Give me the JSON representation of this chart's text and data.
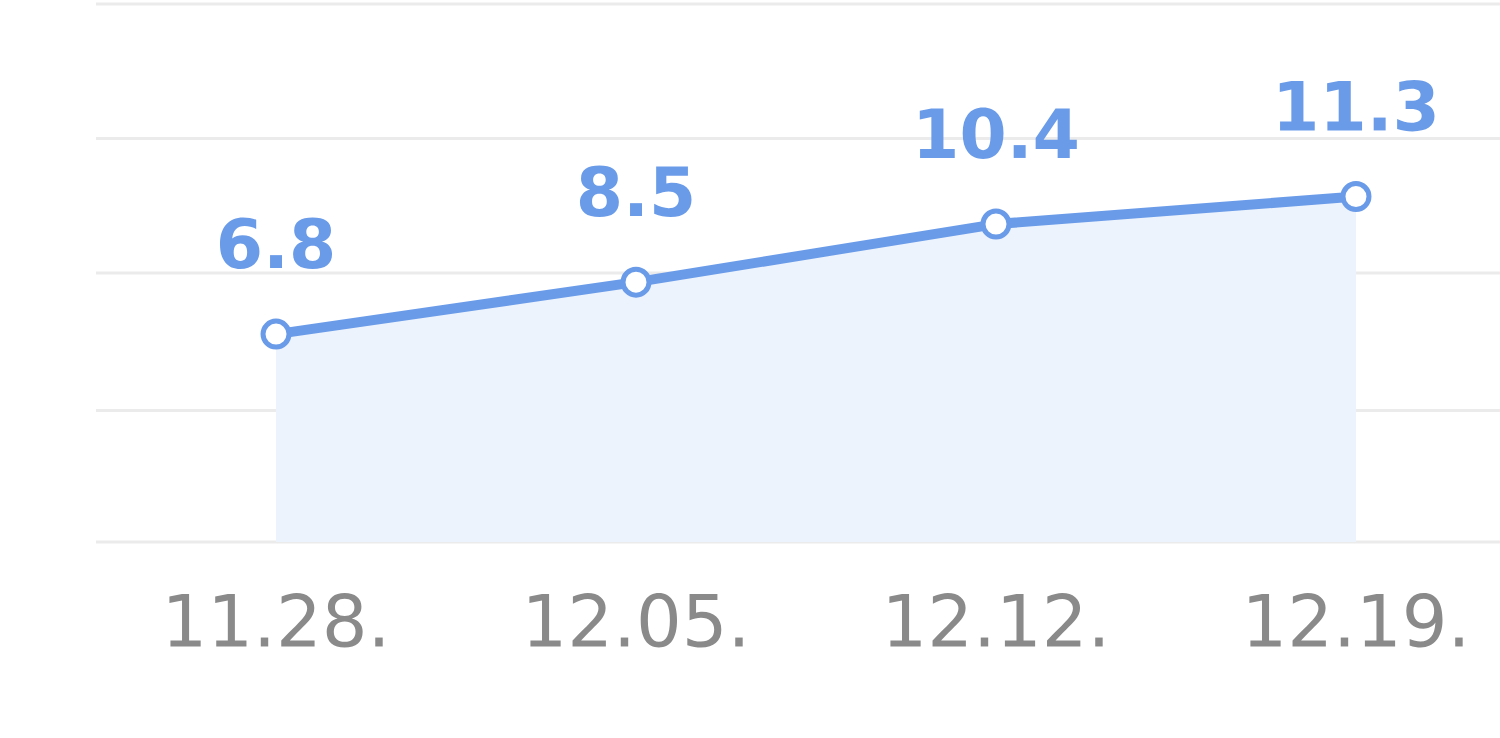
{
  "chart_data": {
    "type": "area",
    "categories": [
      "11.28.",
      "12.05.",
      "12.12.",
      "12.19."
    ],
    "values": [
      6.8,
      8.5,
      10.4,
      11.3
    ],
    "color": "#6a9be9",
    "ylim": [
      0,
      17.6
    ],
    "yticks": [
      {
        "value": 0,
        "label": null
      },
      {
        "value": 4.3,
        "label": null
      },
      {
        "value": 8.8,
        "label": null
      },
      {
        "value": 13.2,
        "label": null
      },
      {
        "value": 17.6,
        "label": null
      }
    ],
    "grid": "y",
    "marker": "circle",
    "data_labels": true,
    "tick_labels": "x"
  }
}
